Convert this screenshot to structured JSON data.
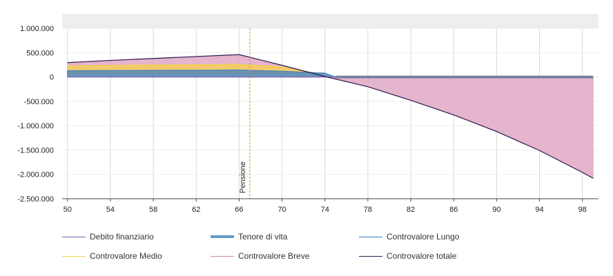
{
  "chart_data": {
    "type": "area",
    "x_ticks": [
      50,
      54,
      58,
      62,
      66,
      70,
      74,
      78,
      82,
      86,
      90,
      94,
      98
    ],
    "y_ticks": [
      1000000,
      500000,
      0,
      -500000,
      -1000000,
      -1500000,
      -2000000,
      -2500000
    ],
    "y_tick_labels": [
      "1.000.000",
      "500.000",
      "0",
      "-500.000",
      "-1.000.000",
      "-1.500.000",
      "-2.000.000",
      "-2.500.000"
    ],
    "xlim": [
      49.5,
      99.5
    ],
    "ylim": [
      -2500000,
      1000000
    ],
    "grid": true,
    "legend_position": "bottom",
    "annotation": {
      "label": "Pensione",
      "x": 67
    },
    "series": [
      {
        "name": "Debito finanziario",
        "color": "#7b5aa6",
        "kind": "line",
        "x": [
          50,
          66,
          74,
          75,
          99
        ],
        "y": [
          0,
          0,
          0,
          0,
          0
        ]
      },
      {
        "name": "Tenore di vita",
        "color": "#6699cc",
        "kind": "thick-line",
        "x": [
          50,
          66,
          70,
          74,
          75,
          99
        ],
        "y": [
          20000,
          20000,
          20000,
          20000,
          0,
          0
        ]
      },
      {
        "name": "Controvalore Lungo",
        "color": "#3d7fc4",
        "kind": "area",
        "x": [
          50,
          56,
          62,
          66,
          70,
          73,
          74,
          75,
          99
        ],
        "y": [
          130000,
          135000,
          140000,
          145000,
          120000,
          90000,
          80000,
          0,
          0
        ]
      },
      {
        "name": "Controvalore Medio",
        "color": "#f5d24a",
        "kind": "area",
        "x": [
          50,
          56,
          62,
          66,
          70,
          72,
          73,
          74
        ],
        "y": [
          230000,
          245000,
          255000,
          262000,
          210000,
          120000,
          90000,
          80000
        ]
      },
      {
        "name": "Controvalore Breve",
        "color": "#e0a7c4",
        "kind": "area",
        "x": [
          50,
          54,
          58,
          62,
          66,
          70,
          74,
          78,
          82,
          86,
          90,
          94,
          98,
          99
        ],
        "y": [
          295000,
          340000,
          380000,
          420000,
          460000,
          240000,
          10000,
          -200000,
          -480000,
          -780000,
          -1120000,
          -1510000,
          -1960000,
          -2080000
        ]
      },
      {
        "name": "Controvalore totale",
        "color": "#2b1a4f",
        "kind": "line",
        "x": [
          50,
          54,
          58,
          62,
          66,
          70,
          74,
          78,
          82,
          86,
          90,
          94,
          98,
          99
        ],
        "y": [
          295000,
          340000,
          380000,
          420000,
          460000,
          240000,
          10000,
          -200000,
          -480000,
          -780000,
          -1120000,
          -1510000,
          -1960000,
          -2080000
        ]
      }
    ],
    "legend": [
      {
        "name": "Debito finanziario",
        "color": "#7b5aa6",
        "width": 1
      },
      {
        "name": "Tenore di vita",
        "color": "#6699cc",
        "width": 4
      },
      {
        "name": "Controvalore Lungo",
        "color": "#3d7fc4",
        "width": 1
      },
      {
        "name": "Controvalore Medio",
        "color": "#f5d24a",
        "width": 1
      },
      {
        "name": "Controvalore Breve",
        "color": "#d67fb3",
        "width": 1
      },
      {
        "name": "Controvalore totale",
        "color": "#2b1a4f",
        "width": 1
      }
    ]
  }
}
